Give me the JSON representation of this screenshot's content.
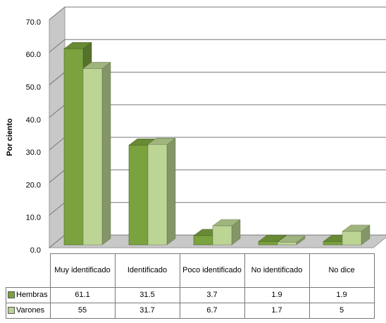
{
  "chart_data": {
    "type": "bar3d",
    "y_axis_label": "Por ciento",
    "categories": [
      "Muy identificado",
      "Identificado",
      "Poco identificado",
      "No identificado",
      "No dice"
    ],
    "series": [
      {
        "name": "Hembras",
        "color": "#7aa23e",
        "values": [
          61.1,
          31.5,
          3.7,
          1.9,
          1.9
        ]
      },
      {
        "name": "Varones",
        "color": "#bcd594",
        "values": [
          55,
          31.7,
          6.7,
          1.7,
          5
        ]
      }
    ],
    "ylim": [
      0,
      70
    ],
    "yticks": [
      {
        "value": 0,
        "label": "0.0"
      },
      {
        "value": 10,
        "label": "10.0"
      },
      {
        "value": 20,
        "label": "20.0"
      },
      {
        "value": 30,
        "label": "30.0"
      },
      {
        "value": 40,
        "label": "40.0"
      },
      {
        "value": 50,
        "label": "50.0"
      },
      {
        "value": 60,
        "label": "60.0"
      },
      {
        "value": 70,
        "label": "70.0"
      }
    ],
    "grid": true
  }
}
